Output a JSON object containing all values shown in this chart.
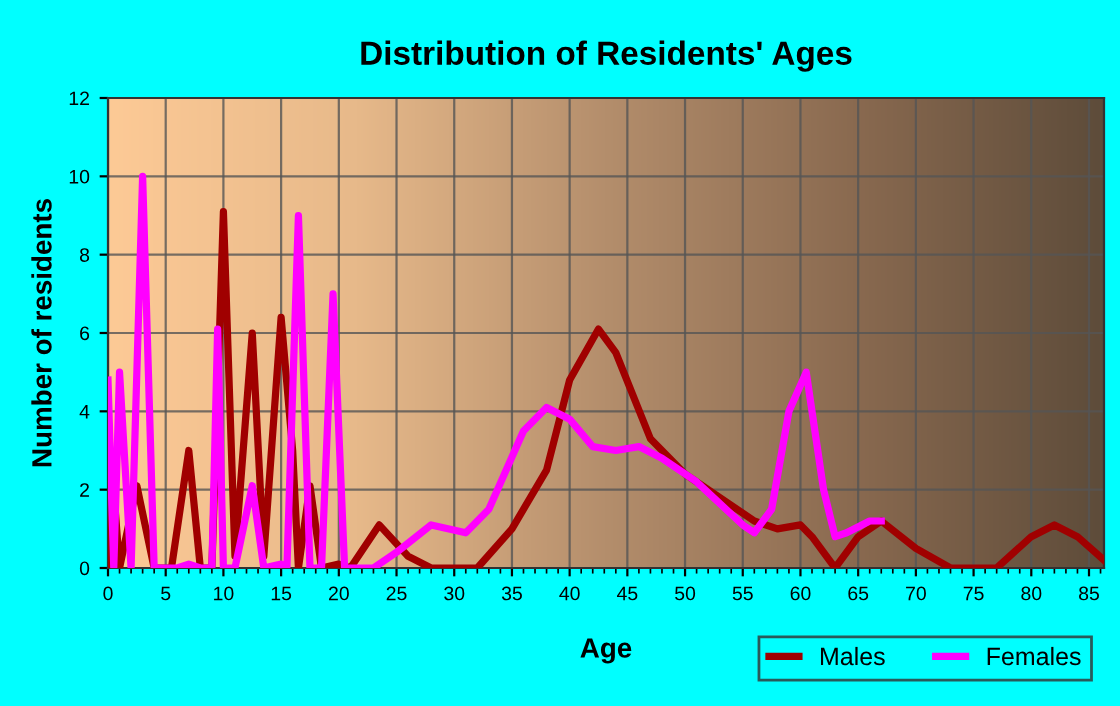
{
  "chart_data": {
    "type": "line",
    "title": "Distribution of Residents' Ages",
    "xlabel": "Age",
    "ylabel": "Number of residents",
    "xlim": [
      0,
      86.3
    ],
    "xticks": [
      0,
      5,
      10,
      15,
      20,
      25,
      30,
      35,
      40,
      45,
      50,
      55,
      60,
      65,
      70,
      75,
      80,
      85
    ],
    "ylim": [
      0,
      12
    ],
    "yticks": [
      0,
      2,
      4,
      6,
      8,
      10,
      12
    ],
    "grid": true,
    "legend": "bottom right",
    "marker": "none",
    "line_style": "solid",
    "series": [
      {
        "name": "Males",
        "color": "#a00000",
        "x": [
          0,
          0.5,
          1,
          2.5,
          4,
          5.5,
          7,
          8,
          9,
          10,
          11,
          12.5,
          13.5,
          15,
          16,
          16.5,
          17.5,
          18.5,
          20,
          21,
          23.5,
          26,
          28,
          32,
          35,
          38,
          40,
          42.5,
          44,
          47,
          50,
          53,
          56,
          58,
          60,
          61,
          63,
          65,
          67,
          70,
          73,
          77,
          80,
          82,
          84,
          86.3
        ],
        "values": [
          0,
          2,
          0,
          2.1,
          0,
          0,
          3,
          0,
          0,
          9.1,
          0.3,
          6,
          0.3,
          6.4,
          3,
          0,
          2.1,
          0,
          0.1,
          0,
          1.1,
          0.3,
          0,
          0,
          1,
          2.5,
          4.8,
          6.1,
          5.5,
          3.3,
          2.4,
          1.8,
          1.2,
          1,
          1.1,
          0.8,
          0,
          0.8,
          1.2,
          0.5,
          0,
          0,
          0.8,
          1.1,
          0.8,
          0.2
        ]
      },
      {
        "name": "Females",
        "color": "#ff00ff",
        "x": [
          0,
          0.5,
          1,
          2,
          3,
          4,
          6,
          7,
          8,
          9,
          9.5,
          10,
          11,
          12.5,
          13.5,
          15,
          15.5,
          16.5,
          17.5,
          18.5,
          19.5,
          20.5,
          23,
          25,
          28,
          31,
          33,
          36,
          38,
          40,
          42,
          44,
          46,
          48,
          51,
          55,
          56,
          57.5,
          59,
          60.5,
          62,
          63,
          64,
          66,
          67
        ],
        "values": [
          4.8,
          0,
          5,
          0,
          10,
          0,
          0,
          0.1,
          0,
          0,
          6.1,
          0,
          0,
          2.1,
          0,
          0.1,
          0,
          9,
          0,
          0,
          7,
          0,
          0,
          0.4,
          1.1,
          0.9,
          1.5,
          3.5,
          4.1,
          3.8,
          3.1,
          3,
          3.1,
          2.8,
          2.2,
          1.1,
          0.9,
          1.5,
          4,
          5,
          2,
          0.8,
          0.9,
          1.2,
          1.2
        ]
      }
    ]
  }
}
